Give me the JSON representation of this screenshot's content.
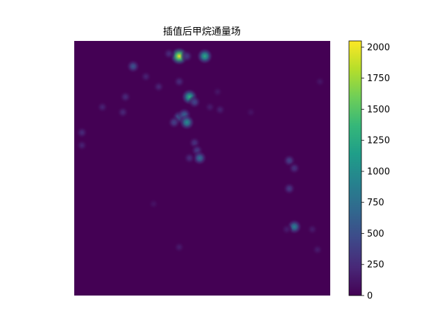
{
  "chart_data": {
    "type": "heatmap",
    "title": "插值后甲烷通量场",
    "xlabel": "",
    "ylabel": "",
    "axes_visible": false,
    "colormap": "viridis",
    "colormap_stops": [
      "#440154",
      "#482878",
      "#3e4989",
      "#31688e",
      "#26828e",
      "#1f9e89",
      "#35b779",
      "#6ece58",
      "#b5de2b",
      "#fde725"
    ],
    "grid": false,
    "colorbar": {
      "min": 0,
      "max": 2050,
      "ticks": [
        0,
        250,
        500,
        750,
        1000,
        1250,
        1500,
        1750,
        2000
      ],
      "tick_labels": [
        "0",
        "250",
        "500",
        "750",
        "1000",
        "1250",
        "1500",
        "1750",
        "2000"
      ]
    },
    "domain": {
      "x": [
        0,
        1
      ],
      "y": [
        0,
        1
      ]
    },
    "hotspots": [
      {
        "x": 0.41,
        "y": 0.94,
        "value": 2000
      },
      {
        "x": 0.51,
        "y": 0.94,
        "value": 1250
      },
      {
        "x": 0.44,
        "y": 0.94,
        "value": 350
      },
      {
        "x": 0.37,
        "y": 0.95,
        "value": 250
      },
      {
        "x": 0.23,
        "y": 0.9,
        "value": 550
      },
      {
        "x": 0.45,
        "y": 0.78,
        "value": 1300
      },
      {
        "x": 0.47,
        "y": 0.76,
        "value": 450
      },
      {
        "x": 0.41,
        "y": 0.7,
        "value": 650
      },
      {
        "x": 0.43,
        "y": 0.71,
        "value": 650
      },
      {
        "x": 0.44,
        "y": 0.68,
        "value": 1000
      },
      {
        "x": 0.39,
        "y": 0.68,
        "value": 400
      },
      {
        "x": 0.47,
        "y": 0.6,
        "value": 300
      },
      {
        "x": 0.48,
        "y": 0.57,
        "value": 350
      },
      {
        "x": 0.49,
        "y": 0.54,
        "value": 750
      },
      {
        "x": 0.45,
        "y": 0.54,
        "value": 250
      },
      {
        "x": 0.41,
        "y": 0.84,
        "value": 250
      },
      {
        "x": 0.33,
        "y": 0.82,
        "value": 220
      },
      {
        "x": 0.28,
        "y": 0.86,
        "value": 200
      },
      {
        "x": 0.2,
        "y": 0.78,
        "value": 250
      },
      {
        "x": 0.19,
        "y": 0.72,
        "value": 230
      },
      {
        "x": 0.11,
        "y": 0.74,
        "value": 200
      },
      {
        "x": 0.03,
        "y": 0.64,
        "value": 250
      },
      {
        "x": 0.03,
        "y": 0.59,
        "value": 200
      },
      {
        "x": 0.53,
        "y": 0.74,
        "value": 150
      },
      {
        "x": 0.56,
        "y": 0.8,
        "value": 120
      },
      {
        "x": 0.57,
        "y": 0.73,
        "value": 180
      },
      {
        "x": 0.84,
        "y": 0.53,
        "value": 400
      },
      {
        "x": 0.86,
        "y": 0.5,
        "value": 300
      },
      {
        "x": 0.84,
        "y": 0.42,
        "value": 350
      },
      {
        "x": 0.86,
        "y": 0.27,
        "value": 900
      },
      {
        "x": 0.83,
        "y": 0.26,
        "value": 150
      },
      {
        "x": 0.93,
        "y": 0.26,
        "value": 150
      },
      {
        "x": 0.95,
        "y": 0.18,
        "value": 150
      },
      {
        "x": 0.96,
        "y": 0.84,
        "value": 120
      },
      {
        "x": 0.41,
        "y": 0.19,
        "value": 150
      },
      {
        "x": 0.31,
        "y": 0.36,
        "value": 100
      },
      {
        "x": 0.69,
        "y": 0.72,
        "value": 100
      }
    ]
  }
}
